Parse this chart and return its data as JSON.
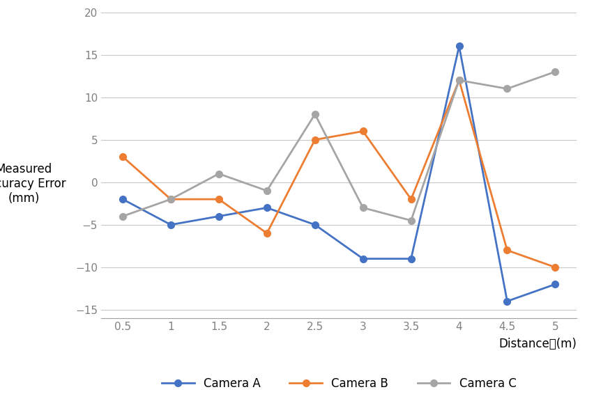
{
  "x": [
    0.5,
    1.0,
    1.5,
    2.0,
    2.5,
    3.0,
    3.5,
    4.0,
    4.5,
    5.0
  ],
  "camera_a": [
    -2,
    -5,
    -4,
    -3,
    -5,
    -9,
    -9,
    16,
    -14,
    -12
  ],
  "camera_b": [
    3,
    -2,
    -2,
    -6,
    5,
    6,
    -2,
    12,
    -8,
    -10
  ],
  "camera_c": [
    -4,
    -2,
    1,
    -1,
    8,
    -3,
    -4.5,
    12,
    11,
    13
  ],
  "color_a": "#4472C4",
  "color_b": "#ED7D31",
  "color_c": "#A5A5A5",
  "marker": "o",
  "xlabel": "Distance　(m)",
  "ylabel_line1": "Measured",
  "ylabel_line2": "Accuracy Error",
  "ylabel_line3": "(mm)",
  "ylim": [
    -16,
    20
  ],
  "yticks": [
    -15,
    -10,
    -5,
    0,
    5,
    10,
    15,
    20
  ],
  "xticks": [
    0.5,
    1.0,
    1.5,
    2.0,
    2.5,
    3.0,
    3.5,
    4.0,
    4.5,
    5.0
  ],
  "xtick_labels": [
    "0.5",
    "1",
    "1.5",
    "2",
    "2.5",
    "3",
    "3.5",
    "4",
    "4.5",
    "5"
  ],
  "legend_labels": [
    "Camera A",
    "Camera B",
    "Camera C"
  ],
  "background_color": "#FFFFFF",
  "grid_color": "#C8C8C8",
  "tick_color": "#808080",
  "spine_color": "#A0A0A0"
}
